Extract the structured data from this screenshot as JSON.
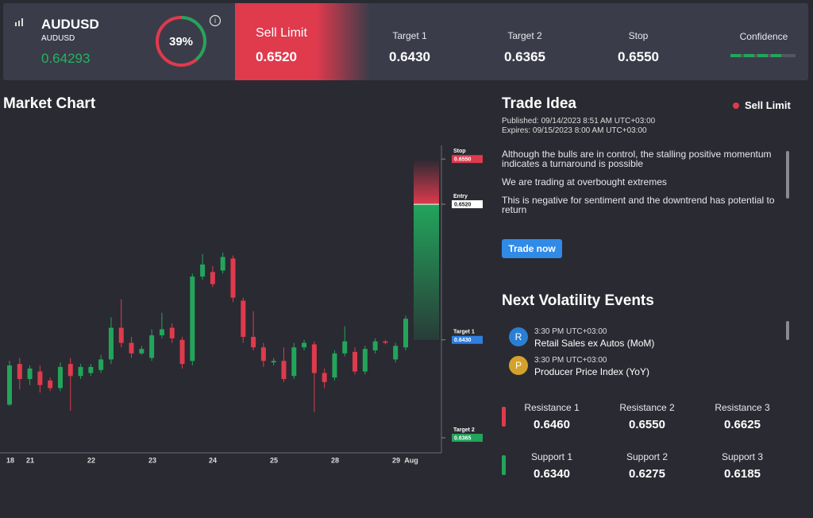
{
  "header": {
    "symbol": "AUDUSD",
    "symbol_sub": "AUDUSD",
    "price": "0.64293",
    "gauge": {
      "value": 39,
      "label": "39%",
      "color": "#22a55b",
      "rest_color": "#e03a4d"
    },
    "order_type": "Sell Limit",
    "entry": "0.6520",
    "targets": [
      {
        "name": "Target 1",
        "value": "0.6430"
      },
      {
        "name": "Target 2",
        "value": "0.6365"
      },
      {
        "name": "Stop",
        "value": "0.6550"
      }
    ],
    "confidence_label": "Confidence"
  },
  "chart_data": {
    "type": "candlestick",
    "title": "Market Chart",
    "up_color": "#22a55b",
    "down_color": "#e03a4d",
    "ylim": [
      0.6355,
      0.6558
    ],
    "x_labels": [
      "18",
      "21",
      "22",
      "23",
      "24",
      "25",
      "28",
      "29",
      "Aug"
    ],
    "candles": [
      {
        "open": 0.6387,
        "high": 0.6416,
        "low": 0.6386,
        "close": 0.6413
      },
      {
        "open": 0.6414,
        "high": 0.6418,
        "low": 0.6397,
        "close": 0.6404
      },
      {
        "open": 0.6404,
        "high": 0.6413,
        "low": 0.64,
        "close": 0.6411
      },
      {
        "open": 0.6409,
        "high": 0.6413,
        "low": 0.6395,
        "close": 0.64
      },
      {
        "open": 0.6403,
        "high": 0.6405,
        "low": 0.6396,
        "close": 0.6398
      },
      {
        "open": 0.6398,
        "high": 0.6415,
        "low": 0.6396,
        "close": 0.6412
      },
      {
        "open": 0.6414,
        "high": 0.6418,
        "low": 0.6383,
        "close": 0.6406
      },
      {
        "open": 0.6406,
        "high": 0.6414,
        "low": 0.6404,
        "close": 0.6412
      },
      {
        "open": 0.6408,
        "high": 0.6414,
        "low": 0.6406,
        "close": 0.6412
      },
      {
        "open": 0.641,
        "high": 0.642,
        "low": 0.6408,
        "close": 0.6417
      },
      {
        "open": 0.6417,
        "high": 0.6445,
        "low": 0.6414,
        "close": 0.6438
      },
      {
        "open": 0.6438,
        "high": 0.6457,
        "low": 0.6425,
        "close": 0.6428
      },
      {
        "open": 0.6428,
        "high": 0.6432,
        "low": 0.6418,
        "close": 0.6421
      },
      {
        "open": 0.6421,
        "high": 0.6426,
        "low": 0.642,
        "close": 0.6424
      },
      {
        "open": 0.6418,
        "high": 0.6437,
        "low": 0.6416,
        "close": 0.6433
      },
      {
        "open": 0.6433,
        "high": 0.6448,
        "low": 0.6431,
        "close": 0.6437
      },
      {
        "open": 0.6438,
        "high": 0.6441,
        "low": 0.6428,
        "close": 0.6431
      },
      {
        "open": 0.643,
        "high": 0.6432,
        "low": 0.6411,
        "close": 0.6414
      },
      {
        "open": 0.6416,
        "high": 0.6474,
        "low": 0.6413,
        "close": 0.6472
      },
      {
        "open": 0.6472,
        "high": 0.6487,
        "low": 0.647,
        "close": 0.648
      },
      {
        "open": 0.6475,
        "high": 0.6479,
        "low": 0.6465,
        "close": 0.6467
      },
      {
        "open": 0.6476,
        "high": 0.6488,
        "low": 0.6474,
        "close": 0.6485
      },
      {
        "open": 0.6484,
        "high": 0.6486,
        "low": 0.6455,
        "close": 0.6458
      },
      {
        "open": 0.6456,
        "high": 0.6458,
        "low": 0.6428,
        "close": 0.6432
      },
      {
        "open": 0.6432,
        "high": 0.6449,
        "low": 0.6423,
        "close": 0.6425
      },
      {
        "open": 0.6425,
        "high": 0.6428,
        "low": 0.6412,
        "close": 0.6416
      },
      {
        "open": 0.6415,
        "high": 0.6418,
        "low": 0.6413,
        "close": 0.6416
      },
      {
        "open": 0.6416,
        "high": 0.6425,
        "low": 0.6402,
        "close": 0.6404
      },
      {
        "open": 0.6406,
        "high": 0.6428,
        "low": 0.6404,
        "close": 0.6425
      },
      {
        "open": 0.6425,
        "high": 0.643,
        "low": 0.6423,
        "close": 0.6428
      },
      {
        "open": 0.6427,
        "high": 0.6429,
        "low": 0.6382,
        "close": 0.6408
      },
      {
        "open": 0.6408,
        "high": 0.6411,
        "low": 0.6398,
        "close": 0.6402
      },
      {
        "open": 0.6405,
        "high": 0.6423,
        "low": 0.6403,
        "close": 0.6421
      },
      {
        "open": 0.6421,
        "high": 0.6439,
        "low": 0.6419,
        "close": 0.6429
      },
      {
        "open": 0.6422,
        "high": 0.6425,
        "low": 0.6407,
        "close": 0.6409
      },
      {
        "open": 0.6409,
        "high": 0.6426,
        "low": 0.6407,
        "close": 0.6424
      },
      {
        "open": 0.6423,
        "high": 0.6431,
        "low": 0.6421,
        "close": 0.6429
      },
      {
        "open": 0.6429,
        "high": 0.643,
        "low": 0.6427,
        "close": 0.6428
      },
      {
        "open": 0.6417,
        "high": 0.6428,
        "low": 0.6415,
        "close": 0.6426
      },
      {
        "open": 0.6425,
        "high": 0.6446,
        "low": 0.6423,
        "close": 0.6444
      }
    ],
    "levels": [
      {
        "name": "Stop",
        "price": {
          "value": 0.655,
          "label": "0.6550"
        },
        "color": "#e03a4d",
        "text_color": "#ffffff"
      },
      {
        "name": "Entry",
        "price": {
          "value": 0.652,
          "label": "0.6520"
        },
        "color": "#ffffff",
        "text_color": "#222222"
      },
      {
        "name": "Target 1",
        "price": {
          "value": 0.643,
          "label": "0.6430"
        },
        "color": "#2f7fe0",
        "text_color": "#ffffff"
      },
      {
        "name": "Target 2",
        "price": {
          "value": 0.6365,
          "label": "0.6365"
        },
        "color": "#22a55b",
        "text_color": "#ffffff"
      }
    ]
  },
  "trade_idea": {
    "title": "Trade Idea",
    "badge": "Sell Limit",
    "published": "Published:  09/14/2023 8:51 AM UTC+03:00",
    "expires": "Expires:  09/15/2023 8:00 AM UTC+03:00",
    "paragraphs": [
      "Although the bulls are in control, the stalling positive momentum indicates a turnaround is possible",
      "We are trading at overbought extremes",
      "This is negative for sentiment and the downtrend has potential to return"
    ],
    "button": "Trade now"
  },
  "events": {
    "title": "Next Volatility Events",
    "items": [
      {
        "icon": "R",
        "time": "3:30 PM UTC+03:00",
        "name": "Retail Sales ex Autos (MoM)"
      },
      {
        "icon": "P",
        "time": "3:30 PM UTC+03:00",
        "name": "Producer Price Index (YoY)"
      }
    ]
  },
  "levels": {
    "resistance": [
      {
        "label": "Resistance 1",
        "value": "0.6460"
      },
      {
        "label": "Resistance 2",
        "value": "0.6550"
      },
      {
        "label": "Resistance 3",
        "value": "0.6625"
      }
    ],
    "support": [
      {
        "label": "Support 1",
        "value": "0.6340"
      },
      {
        "label": "Support 2",
        "value": "0.6275"
      },
      {
        "label": "Support 3",
        "value": "0.6185"
      }
    ]
  }
}
